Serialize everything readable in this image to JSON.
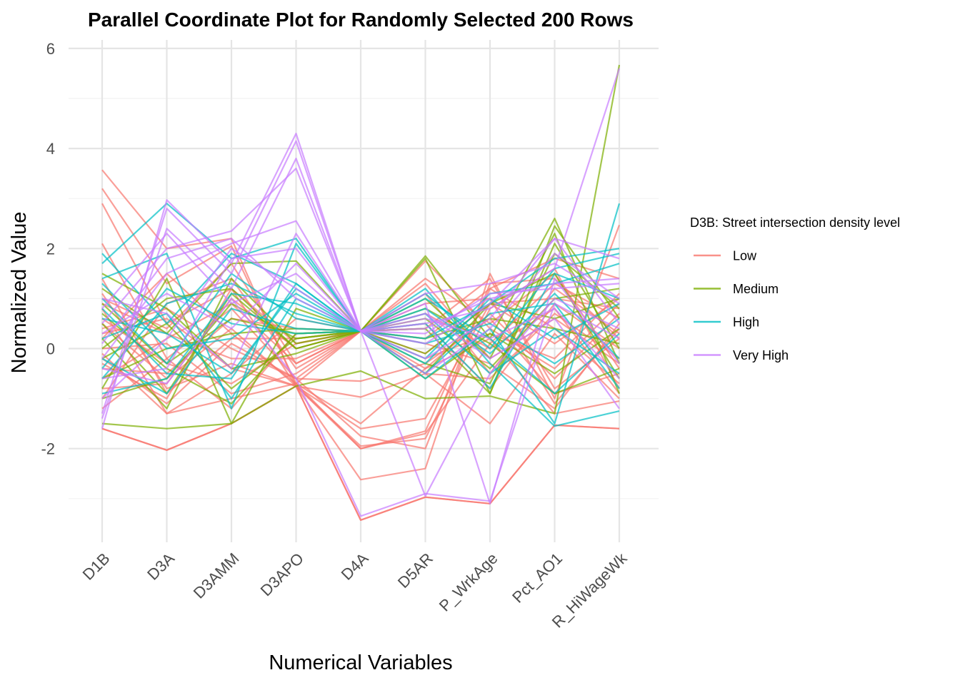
{
  "chart_data": {
    "type": "line",
    "subtype": "parallel-coordinates",
    "title": "Parallel Coordinate Plot for Randomly Selected 200 Rows",
    "xlabel": "Numerical Variables",
    "ylabel": "Normalized Value",
    "ylim": [
      -3.9,
      6.1
    ],
    "yticks": [
      -2,
      0,
      2,
      4,
      6
    ],
    "grid": true,
    "legend_position": "right",
    "axes": [
      "D1B",
      "D3A",
      "D3AMM",
      "D3APO",
      "D4A",
      "D5AR",
      "P_WrkAge",
      "Pct_AO1",
      "R_HiWageWk"
    ],
    "legend": {
      "title": "D3B: Street intersection density level",
      "entries": [
        {
          "name": "Low",
          "color": "#F8766D"
        },
        {
          "name": "Medium",
          "color": "#7CAE00"
        },
        {
          "name": "High",
          "color": "#00BFC4"
        },
        {
          "name": "Very High",
          "color": "#C77CFF"
        }
      ]
    },
    "series": [
      {
        "name": "Low",
        "lines": [
          [
            -1.6,
            -2.03,
            -1.5,
            -0.75,
            -3.43,
            -2.97,
            -3.1,
            -1.53,
            -1.6
          ],
          [
            -1.6,
            -2.03,
            -1.5,
            -0.75,
            -3.43,
            -2.97,
            -3.1,
            -1.53,
            -1.6
          ],
          [
            3.57,
            2.0,
            2.2,
            -0.75,
            -2.62,
            -2.4,
            1.5,
            -1.0,
            2.47
          ],
          [
            3.2,
            1.3,
            2.05,
            -0.7,
            -2.0,
            -1.65,
            1.2,
            1.8,
            1.4
          ],
          [
            2.9,
            0.5,
            1.2,
            -0.75,
            -1.95,
            -1.8,
            0.8,
            1.6,
            -0.8
          ],
          [
            2.1,
            -0.2,
            0.8,
            -0.6,
            -1.75,
            -2.0,
            1.3,
            1.4,
            0.2
          ],
          [
            1.1,
            -0.8,
            -0.3,
            -0.75,
            -1.6,
            -1.4,
            0.9,
            1.0,
            0.8
          ],
          [
            0.8,
            -1.3,
            -1.0,
            -0.7,
            -1.5,
            -0.4,
            0.2,
            -1.3,
            -1.05
          ],
          [
            0.5,
            -0.6,
            0.4,
            -0.75,
            -0.97,
            -0.5,
            -1.5,
            0.3,
            -1.0
          ],
          [
            -0.2,
            -1.1,
            0.1,
            -0.6,
            -0.65,
            -0.3,
            0.6,
            -0.9,
            -0.5
          ],
          [
            0.3,
            0.6,
            -0.4,
            -0.75,
            -2.0,
            -1.7,
            0.1,
            1.3,
            0.6
          ],
          [
            -0.6,
            0.2,
            0.9,
            -0.3,
            0.35,
            1.75,
            0.4,
            -0.4,
            0.9
          ],
          [
            0.6,
            -0.3,
            -0.7,
            0.1,
            0.35,
            1.3,
            -0.2,
            0.6,
            -0.3
          ],
          [
            -1.0,
            0.9,
            1.4,
            -0.4,
            0.35,
            0.9,
            1.0,
            -1.1,
            0.4
          ],
          [
            1.4,
            -0.9,
            0.2,
            0.2,
            0.35,
            0.5,
            -0.8,
            0.9,
            0.0
          ],
          [
            0.0,
            0.1,
            -0.9,
            -0.5,
            0.35,
            -0.2,
            0.3,
            -0.2,
            1.1
          ],
          [
            -0.4,
            -0.5,
            0.6,
            0.4,
            0.35,
            0.2,
            1.2,
            0.4,
            -0.7
          ],
          [
            0.9,
            0.3,
            -0.2,
            -0.2,
            0.35,
            1.1,
            -0.5,
            1.2,
            0.3
          ],
          [
            -0.8,
            -0.7,
            1.0,
            0.0,
            0.35,
            -0.4,
            0.7,
            -0.6,
            0.7
          ],
          [
            0.2,
            1.5,
            0.3,
            -0.7,
            0.35,
            0.7,
            0.0,
            0.8,
            -0.9
          ],
          [
            -0.1,
            -1.3,
            -0.5,
            0.6,
            0.35,
            0.1,
            -0.3,
            -1.2,
            0.5
          ],
          [
            1.0,
            0.4,
            1.7,
            -0.3,
            0.35,
            -0.1,
            0.9,
            0.1,
            1.0
          ],
          [
            -1.2,
            -0.2,
            -1.2,
            0.3,
            0.35,
            1.4,
            0.5,
            1.5,
            -0.4
          ],
          [
            0.4,
            0.8,
            0.0,
            -0.6,
            0.35,
            0.4,
            1.4,
            -0.8,
            0.2
          ],
          [
            -0.3,
            -1.0,
            1.2,
            0.1,
            0.35,
            -0.5,
            -0.6,
            0.7,
            -0.2
          ]
        ]
      },
      {
        "name": "Medium",
        "lines": [
          [
            -1.5,
            -1.6,
            -1.5,
            -0.75,
            -0.45,
            -1.0,
            -0.95,
            -1.3,
            5.67
          ],
          [
            1.2,
            0.3,
            1.7,
            1.75,
            0.35,
            1.85,
            0.2,
            2.6,
            -0.3
          ],
          [
            0.5,
            -0.9,
            1.1,
            0.0,
            0.35,
            1.8,
            -0.9,
            2.45,
            0.6
          ],
          [
            -0.8,
            1.4,
            -1.5,
            0.8,
            0.35,
            -0.1,
            0.9,
            1.5,
            -0.6
          ],
          [
            0.9,
            -0.3,
            0.6,
            0.3,
            0.35,
            0.6,
            -0.4,
            1.0,
            1.2
          ],
          [
            -0.2,
            0.5,
            -0.8,
            0.2,
            0.35,
            -0.6,
            0.3,
            -0.5,
            0.4
          ],
          [
            0.2,
            -1.2,
            1.4,
            0.1,
            0.35,
            1.0,
            -0.2,
            2.3,
            -0.9
          ],
          [
            -0.6,
            0.0,
            0.3,
            0.4,
            0.35,
            0.2,
            0.6,
            0.4,
            0.1
          ],
          [
            1.5,
            0.8,
            -0.4,
            -0.1,
            0.35,
            -0.3,
            -0.7,
            1.9,
            0.8
          ],
          [
            -1.0,
            -0.6,
            0.9,
            0.2,
            0.35,
            0.8,
            0.1,
            -0.9,
            -0.4
          ],
          [
            0.0,
            1.0,
            1.2,
            0.0,
            0.35,
            -0.5,
            0.9,
            0.6,
            1.0
          ],
          [
            0.7,
            -0.4,
            -1.1,
            0.3,
            0.35,
            0.4,
            -0.9,
            2.1,
            0.0
          ]
        ]
      },
      {
        "name": "High",
        "lines": [
          [
            1.7,
            2.9,
            1.8,
            2.2,
            0.35,
            -0.6,
            0.4,
            -1.5,
            2.9
          ],
          [
            1.9,
            0.5,
            1.9,
            1.3,
            0.35,
            1.2,
            -0.3,
            -1.55,
            -1.25
          ],
          [
            1.4,
            1.9,
            -1.2,
            2.1,
            0.35,
            0.2,
            0.9,
            1.8,
            2.0
          ],
          [
            -0.9,
            -0.6,
            1.1,
            0.9,
            0.35,
            0.7,
            -0.5,
            0.4,
            -0.5
          ],
          [
            0.6,
            0.3,
            -0.5,
            1.2,
            0.35,
            -0.2,
            1.1,
            1.3,
            1.7
          ],
          [
            -0.4,
            1.2,
            0.5,
            0.3,
            0.35,
            1.0,
            0.2,
            -0.9,
            0.3
          ],
          [
            1.0,
            -0.3,
            1.5,
            0.6,
            0.35,
            -0.5,
            0.7,
            0.9,
            -0.8
          ],
          [
            0.2,
            0.7,
            -1.0,
            1.0,
            0.35,
            0.5,
            -0.8,
            1.5,
            1.0
          ],
          [
            -0.2,
            -0.9,
            0.8,
            0.4,
            0.35,
            0.1,
            0.5,
            -0.3,
            0.6
          ],
          [
            1.3,
            0.0,
            0.2,
            1.1,
            0.35,
            0.8,
            -0.1,
            1.1,
            -0.2
          ],
          [
            -0.6,
            0.9,
            1.3,
            0.7,
            0.35,
            -0.3,
            1.0,
            0.2,
            0.9
          ],
          [
            0.8,
            -0.5,
            -0.6,
            1.3,
            0.35,
            1.1,
            0.0,
            1.6,
            1.9
          ]
        ]
      },
      {
        "name": "Very High",
        "lines": [
          [
            -1.6,
            2.97,
            1.7,
            4.3,
            0.35,
            0.5,
            0.8,
            1.6,
            5.6
          ],
          [
            -1.3,
            2.8,
            1.5,
            4.15,
            0.35,
            0.3,
            1.1,
            1.2,
            1.3
          ],
          [
            -1.4,
            2.4,
            1.2,
            3.8,
            0.35,
            -2.95,
            -0.5,
            1.0,
            0.4
          ],
          [
            0.5,
            2.0,
            2.35,
            3.6,
            0.35,
            0.9,
            -3.1,
            1.4,
            -0.3
          ],
          [
            -0.2,
            1.5,
            2.1,
            2.55,
            0.35,
            -0.2,
            0.6,
            2.2,
            1.8
          ],
          [
            1.0,
            0.7,
            -0.4,
            2.3,
            0.35,
            0.6,
            0.2,
            0.8,
            -0.6
          ],
          [
            -0.6,
            -0.4,
            1.8,
            2.0,
            0.35,
            1.1,
            1.3,
            1.7,
            0.9
          ],
          [
            0.3,
            1.1,
            0.4,
            1.7,
            0.35,
            -0.5,
            0.4,
            1.9,
            1.0
          ],
          [
            -1.0,
            0.2,
            2.0,
            1.2,
            0.35,
            0.7,
            -0.2,
            0.6,
            -1.2
          ],
          [
            0.8,
            2.3,
            0.9,
            1.5,
            0.35,
            0.1,
            0.9,
            2.2,
            0.5
          ],
          [
            -0.4,
            -0.7,
            1.0,
            -0.6,
            -3.35,
            -2.9,
            -3.05,
            0.9,
            0.2
          ],
          [
            0.1,
            1.8,
            2.2,
            1.0,
            0.35,
            0.4,
            1.0,
            1.3,
            1.4
          ]
        ]
      }
    ]
  }
}
